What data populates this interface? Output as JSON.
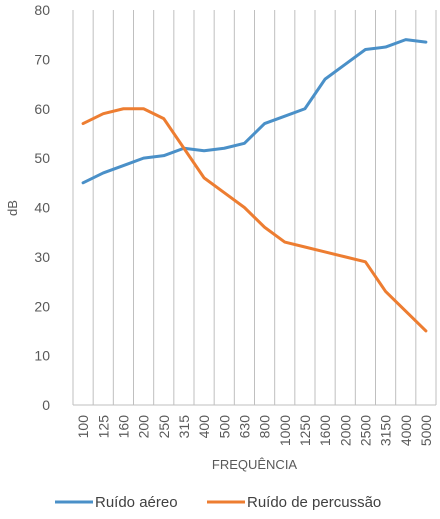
{
  "chart_data": {
    "type": "line",
    "title": "",
    "xlabel": "FREQUÊNCIA",
    "ylabel": "dB",
    "ylim": [
      0,
      80
    ],
    "yticks": [
      "0",
      "10",
      "20",
      "30",
      "40",
      "50",
      "60",
      "70",
      "80"
    ],
    "categories": [
      "100",
      "125",
      "160",
      "200",
      "250",
      "315",
      "400",
      "500",
      "630",
      "800",
      "1000",
      "1250",
      "1600",
      "2000",
      "2500",
      "3150",
      "4000",
      "5000"
    ],
    "grid": "vertical",
    "legend_position": "bottom",
    "series": [
      {
        "name": "Ruído aéreo",
        "color": "#4a90c8",
        "values": [
          45,
          47,
          48.5,
          50,
          50.5,
          52,
          51.5,
          52,
          53,
          57,
          58.5,
          60,
          66,
          69,
          72,
          72.5,
          74,
          73.5
        ]
      },
      {
        "name": "Ruído de percussão",
        "color": "#ed7d31",
        "values": [
          57,
          59,
          60,
          60,
          58,
          52,
          46,
          43,
          40,
          36,
          33,
          32,
          31,
          30,
          29,
          23,
          19,
          15
        ]
      }
    ],
    "colors": {
      "grid": "#bfbfbf",
      "axis": "#bfbfbf",
      "text": "#595959"
    }
  }
}
